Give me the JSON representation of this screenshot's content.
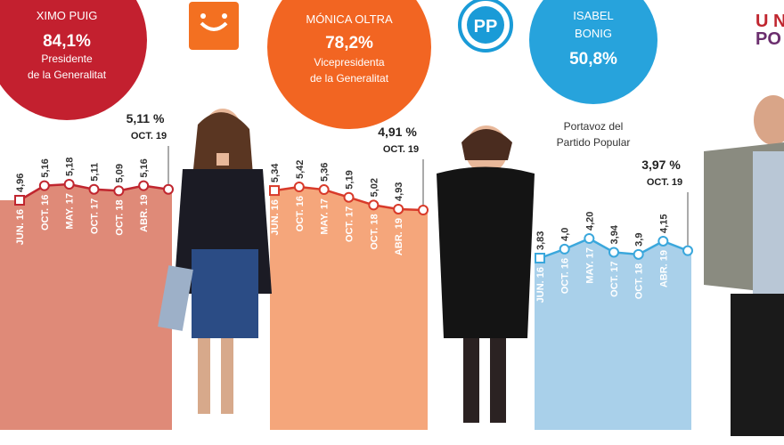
{
  "panels": [
    {
      "name": [
        "XIMO PUIG"
      ],
      "score": "84,1%",
      "role": [
        "Presidente",
        "de la Generalitat"
      ]
    },
    {
      "name": [
        "MÓNICA OLTRA"
      ],
      "score": "78,2%",
      "role": [
        "Vicepresidenta",
        "de la Generalitat"
      ]
    },
    {
      "name": [
        "ISABEL",
        "BONIG"
      ],
      "score": "50,8%",
      "role": [
        "Portavoz  del",
        "Partido Popular"
      ]
    }
  ],
  "logos": {
    "pp": "PP",
    "podemos": [
      "U N",
      "PO"
    ]
  },
  "chart_data": [
    {
      "type": "area",
      "categories": [
        "JUN. 16",
        "OCT. 16",
        "MAY. 17",
        "OCT. 17",
        "OCT. 18",
        "ABR. 19",
        "OCT. 19"
      ],
      "values": [
        4.96,
        5.16,
        5.18,
        5.11,
        5.09,
        5.16,
        5.11
      ],
      "value_labels": [
        "4,96",
        "5,16",
        "5,18",
        "5,11",
        "5,09",
        "5,16",
        "5,11 %"
      ],
      "color": "#df8a78",
      "line_color": "#c0262f"
    },
    {
      "type": "area",
      "categories": [
        "JUN. 16",
        "OCT. 16",
        "MAY. 17",
        "OCT. 17",
        "OCT. 18",
        "ABR. 19",
        "OCT. 19"
      ],
      "values": [
        5.34,
        5.42,
        5.36,
        5.19,
        5.02,
        4.93,
        4.91
      ],
      "value_labels": [
        "5,34",
        "5,42",
        "5,36",
        "5,19",
        "5,02",
        "4,93",
        "4,91 %"
      ],
      "color": "#f5a67b",
      "line_color": "#d83a2a"
    },
    {
      "type": "area",
      "categories": [
        "JUN. 16",
        "OCT. 16",
        "MAY. 17",
        "OCT. 17",
        "OCT. 18",
        "ABR. 19",
        "OCT. 19"
      ],
      "values": [
        3.83,
        4.0,
        4.2,
        3.94,
        3.9,
        4.15,
        3.97
      ],
      "value_labels": [
        "3,83",
        "4,0",
        "4,20",
        "3,94",
        "3,9",
        "4,15",
        "3,97 %"
      ],
      "color": "#a9d0ea",
      "line_color": "#3aa7dc"
    }
  ]
}
